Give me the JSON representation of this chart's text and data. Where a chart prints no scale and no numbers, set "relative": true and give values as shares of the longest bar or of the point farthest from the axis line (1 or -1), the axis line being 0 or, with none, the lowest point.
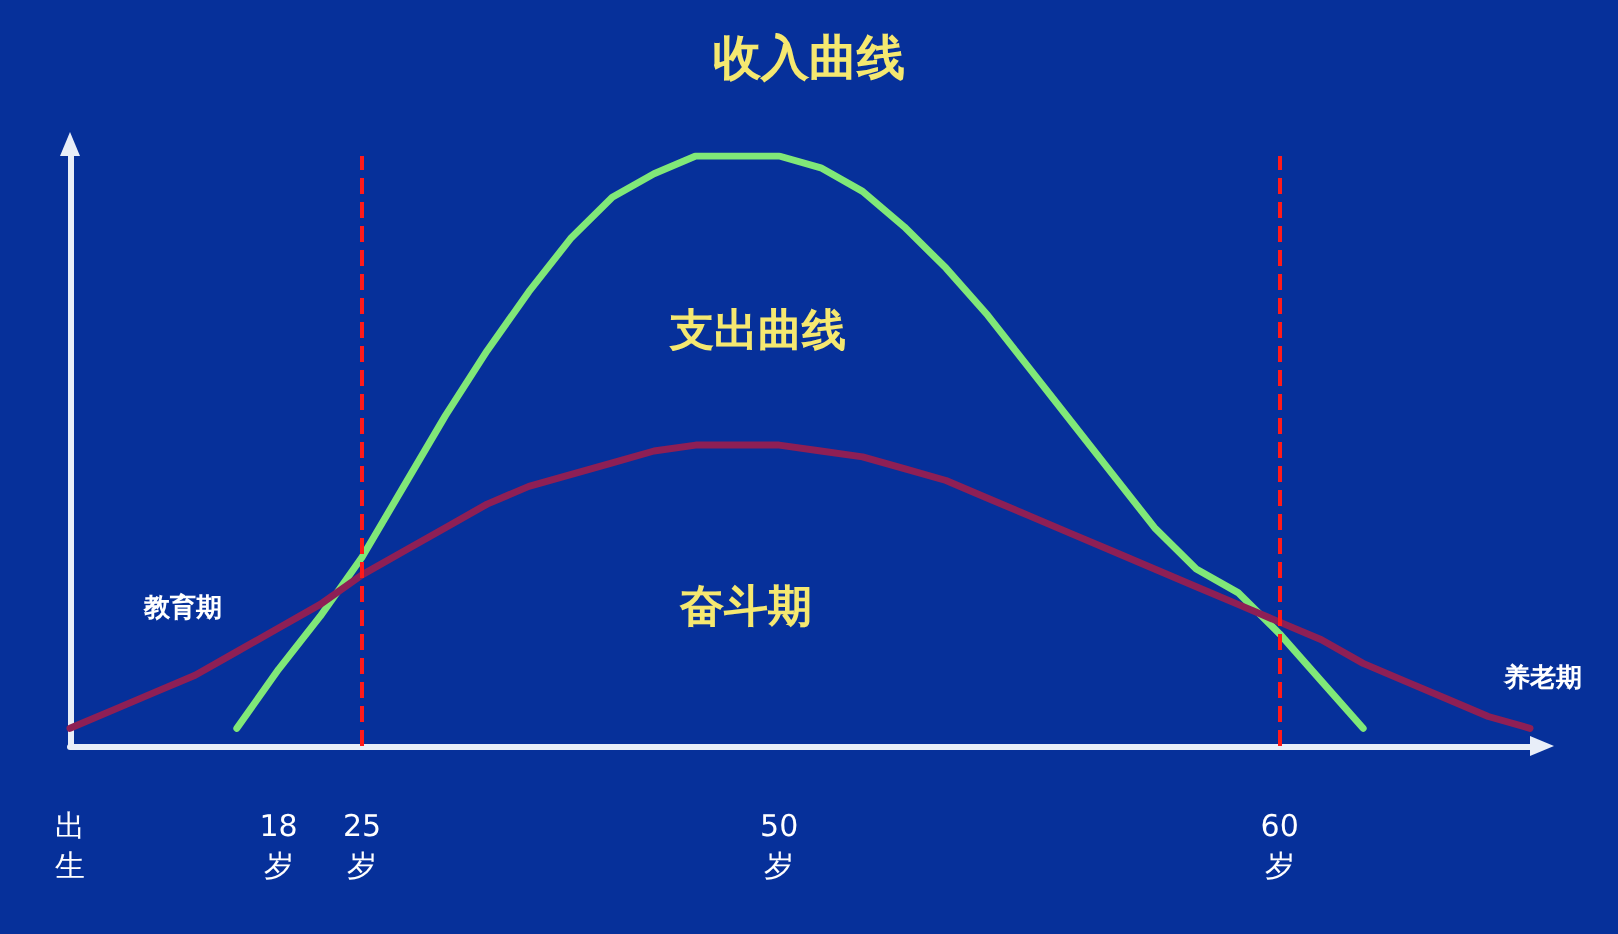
{
  "chart_data": {
    "type": "line",
    "title": "收入曲线",
    "relative": true,
    "marker": "none",
    "grid": false,
    "categories": [
      "出生",
      null,
      null,
      null,
      null,
      "18岁",
      null,
      "25岁",
      null,
      null,
      null,
      null,
      null,
      null,
      null,
      null,
      null,
      "50岁",
      null,
      null,
      null,
      null,
      null,
      null,
      null,
      null,
      null,
      null,
      null,
      "60岁",
      null,
      null,
      null,
      null,
      null,
      null
    ],
    "series": [
      {
        "color": "#80e878",
        "values": [
          null,
          null,
          null,
          null,
          0.03,
          0.13,
          0.22,
          0.32,
          0.44,
          0.56,
          0.67,
          0.77,
          0.86,
          0.93,
          0.97,
          1.0,
          1.0,
          1.0,
          0.98,
          0.94,
          0.88,
          0.81,
          0.73,
          0.64,
          0.55,
          0.46,
          0.37,
          0.3,
          0.26,
          0.19,
          0.11,
          0.03,
          null,
          null,
          null,
          null
        ]
      },
      {
        "color": "#8e1f55",
        "values": [
          0.03,
          0.06,
          0.09,
          0.12,
          0.16,
          0.2,
          0.24,
          0.29,
          0.33,
          0.37,
          0.41,
          0.44,
          0.46,
          0.48,
          0.5,
          0.51,
          0.51,
          0.51,
          0.5,
          0.49,
          0.47,
          0.45,
          0.42,
          0.39,
          0.36,
          0.33,
          0.3,
          0.27,
          0.24,
          0.21,
          0.18,
          0.14,
          0.11,
          0.08,
          0.05,
          0.03
        ]
      }
    ],
    "ref_lines": [
      {
        "axis": "x",
        "value": "25岁",
        "color": "#ff1a1a",
        "line_style": "dashed"
      },
      {
        "axis": "x",
        "value": "60岁",
        "color": "#ff1a1a",
        "line_style": "dashed"
      }
    ],
    "annotations": [
      "支出曲线",
      "奋斗期",
      "教育期",
      "养老期"
    ]
  }
}
